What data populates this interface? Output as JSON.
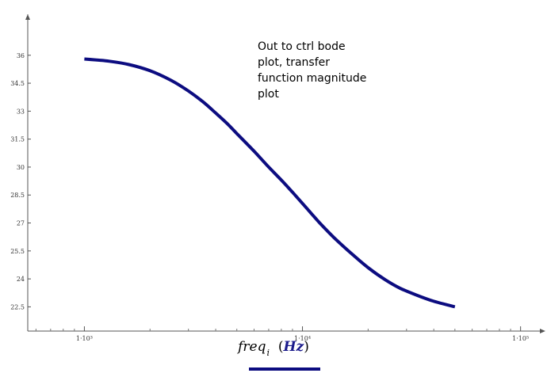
{
  "chart_data": {
    "type": "line",
    "x_scale": "log",
    "xlim": [
      550,
      130000
    ],
    "ylim": [
      21.2,
      38.2
    ],
    "x_ticks": [
      {
        "value": 1000,
        "label": "1·10³"
      },
      {
        "value": 10000,
        "label": "1·10⁴"
      },
      {
        "value": 100000,
        "label": "1·10⁵"
      }
    ],
    "y_ticks": [
      {
        "value": 36,
        "label": "36"
      },
      {
        "value": 34.5,
        "label": "34.5"
      },
      {
        "value": 33,
        "label": "33"
      },
      {
        "value": 31.5,
        "label": "31.5"
      },
      {
        "value": 30,
        "label": "30"
      },
      {
        "value": 28.5,
        "label": "28.5"
      },
      {
        "value": 27,
        "label": "27"
      },
      {
        "value": 25.5,
        "label": "25.5"
      },
      {
        "value": 24,
        "label": "24"
      },
      {
        "value": 22.5,
        "label": "22.5"
      }
    ],
    "xlabel": {
      "var": "freq",
      "sub": "i",
      "unit": "Hz"
    },
    "grid": false,
    "series": [
      {
        "color": "#0c0c80",
        "x": [
          1000,
          1300,
          1600,
          2000,
          2500,
          3000,
          3500,
          4000,
          4500,
          5000,
          6000,
          7000,
          8000,
          9000,
          10000,
          11000,
          12000,
          14000,
          17000,
          20000,
          24000,
          28000,
          33000,
          40000,
          50000
        ],
        "y": [
          35.8,
          35.68,
          35.5,
          35.17,
          34.65,
          34.08,
          33.5,
          32.9,
          32.35,
          31.8,
          30.85,
          30.0,
          29.3,
          28.65,
          28.05,
          27.5,
          27.0,
          26.2,
          25.3,
          24.6,
          23.95,
          23.5,
          23.15,
          22.8,
          22.5
        ]
      }
    ],
    "annotation": {
      "lines": [
        "Out to ctrl bode",
        "plot, transfer",
        "function magnitude",
        "plot"
      ]
    }
  }
}
